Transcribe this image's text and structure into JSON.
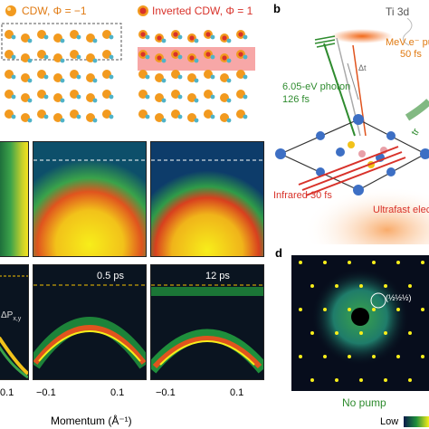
{
  "panel_a": {
    "legend_cdw": "CDW, Φ = −1",
    "legend_inverted": "Inverted CDW, Φ = 1"
  },
  "panel_b": {
    "letter": "b",
    "ti_label": "Ti 3d",
    "mev_label": "MeV e⁻ pulse",
    "mev_duration": "50 fs",
    "delta_t": "Δt",
    "photon_label": "6.05-eV photon",
    "photon_duration": "126 fs",
    "infrared_label": "Infrared 30 fs",
    "ultrafast_label": "Ultrafast elec",
    "side_label": "tr"
  },
  "panel_c": {
    "delay_1": "0.5 ps",
    "delay_2": "12 ps",
    "delta_p": "ΔP",
    "delta_p_sub": "x,y",
    "ticks": [
      "0.1",
      "−0.1",
      "0.1",
      "−0.1",
      "0.1"
    ],
    "xlabel": "Momentum (Å⁻¹)"
  },
  "panel_d": {
    "letter": "d",
    "spot_label": "(½½½)",
    "caption": "No pump",
    "scale_low": "Low"
  },
  "colors": {
    "cdw_orange": "#f29a1f",
    "inverted_red": "#d8322a",
    "arpes_yellow": "#f7ee1a",
    "delay_text": "#f7c200",
    "photon_green": "#2e8b2e",
    "infrared_red": "#d8322a"
  }
}
